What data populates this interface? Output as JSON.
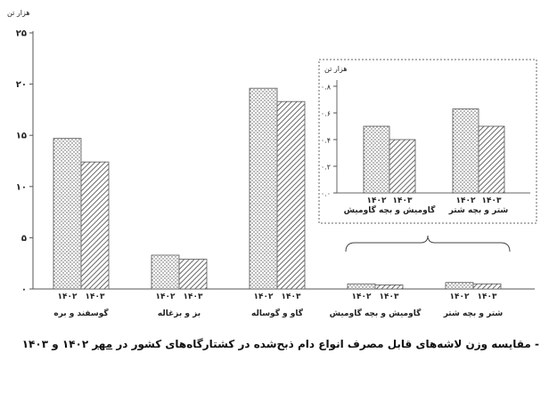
{
  "chart_data": [
    {
      "type": "bar",
      "unit_label": "هزار تن",
      "categories": [
        "گوسفند و بره",
        "بز و بزغاله",
        "گاو و گوساله",
        "گاومیش و بچه گاومیش",
        "شتر و بچه شتر"
      ],
      "series": [
        {
          "name": "۱۴۰۲",
          "values": [
            14.7,
            3.3,
            19.6,
            0.5,
            0.63
          ]
        },
        {
          "name": "۱۴۰۳",
          "values": [
            12.4,
            2.9,
            18.3,
            0.4,
            0.5
          ]
        }
      ],
      "yticks": [
        "۰",
        "۵",
        "۱۰",
        "۱۵",
        "۲۰",
        "۲۵"
      ],
      "ylim": [
        0,
        25
      ],
      "grid": false
    },
    {
      "type": "bar",
      "inset": true,
      "unit_label": "هزار تن",
      "categories": [
        "گاومیش و بچه گاومیش",
        "شتر و بچه شتر"
      ],
      "series": [
        {
          "name": "۱۴۰۲",
          "values": [
            0.5,
            0.63
          ]
        },
        {
          "name": "۱۴۰۳",
          "values": [
            0.4,
            0.5
          ]
        }
      ],
      "yticks": [
        "۰.۰",
        "۰.۲",
        "۰.۴",
        "۰.۶",
        "۰.۸"
      ],
      "ylim": [
        0,
        0.8
      ],
      "grid": false
    }
  ],
  "caption": {
    "prefix": "- مقایسه وزن لاشه‌های قابل مصرف انواع دام ذبح‌شده در کشتارگاه‌های کشور در ",
    "month": "مهر",
    "suffix": " ۱۴۰۲ و ۱۴۰۳"
  }
}
